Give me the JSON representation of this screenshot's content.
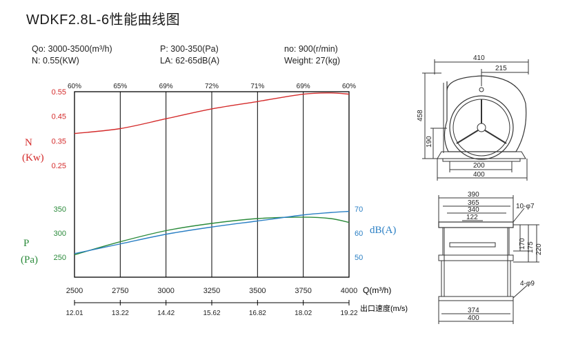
{
  "title": "WDKF2.8L-6性能曲线图",
  "specs": {
    "q": "Qo: 3000-3500(m³/h)",
    "n_power": "N: 0.55(KW)",
    "p": "P: 300-350(Pa)",
    "la": "LA: 62-65dB(A)",
    "speed": "no: 900(r/min)",
    "weight": "Weight: 27(kg)"
  },
  "colors": {
    "n": "#d42a2a",
    "p": "#2a8a3a",
    "db": "#2a7fc4",
    "grid": "#000000"
  },
  "chart_data": {
    "type": "line",
    "x_label": "Q(m³/h)",
    "x": [
      2500,
      2750,
      3000,
      3250,
      3500,
      3750,
      4000
    ],
    "x_ticks": [
      "2500",
      "2750",
      "3000",
      "3250",
      "3500",
      "3750",
      "4000"
    ],
    "xlim": [
      2500,
      4000
    ],
    "efficiency_ticks": [
      "60%",
      "65%",
      "69%",
      "72%",
      "71%",
      "69%",
      "60%"
    ],
    "velocity_label": "出口速度(m/s)",
    "velocity_ticks": [
      "12.01",
      "13.22",
      "14.42",
      "15.62",
      "16.82",
      "18.02",
      "19.22"
    ],
    "n_axis": {
      "label_top": "N",
      "label_bottom": "(Kw)",
      "ticks": [
        "0.55",
        "0.45",
        "0.35",
        "0.25"
      ],
      "range": [
        0.25,
        0.55
      ]
    },
    "p_axis": {
      "label_top": "P",
      "label_bottom": "(Pa)",
      "ticks": [
        "350",
        "300",
        "250"
      ],
      "range": [
        250,
        350
      ]
    },
    "db_axis": {
      "label": "dB(A)",
      "ticks": [
        "70",
        "60",
        "50"
      ],
      "range": [
        50,
        70
      ]
    },
    "series": [
      {
        "key": "n",
        "x": [
          2500,
          2750,
          3000,
          3250,
          3500,
          3750,
          3900,
          4000
        ],
        "values": [
          0.38,
          0.4,
          0.44,
          0.48,
          0.51,
          0.54,
          0.545,
          0.54
        ]
      },
      {
        "key": "p",
        "x": [
          2500,
          2750,
          3000,
          3250,
          3500,
          3750,
          3900,
          4000
        ],
        "values": [
          255,
          282,
          305,
          320,
          330,
          333,
          330,
          322
        ]
      },
      {
        "key": "db",
        "x": [
          2500,
          2750,
          3000,
          3250,
          3500,
          3750,
          3900,
          4000
        ],
        "values": [
          51.5,
          55.5,
          59.5,
          62.5,
          65,
          67.5,
          68.5,
          69
        ]
      }
    ]
  },
  "drawing": {
    "side_dims": {
      "total_width": "410",
      "half_width": "215",
      "height": "458",
      "center_height": "190",
      "base_inner": "200",
      "base_outer": "400"
    },
    "top_dims": {
      "d390": "390",
      "d365": "365",
      "d340": "340",
      "d122": "122",
      "hole_top": "10-φ7",
      "h170": "170",
      "h175": "175",
      "h220": "220",
      "hole_bottom": "4-φ9",
      "b374": "374",
      "b400": "400"
    }
  }
}
